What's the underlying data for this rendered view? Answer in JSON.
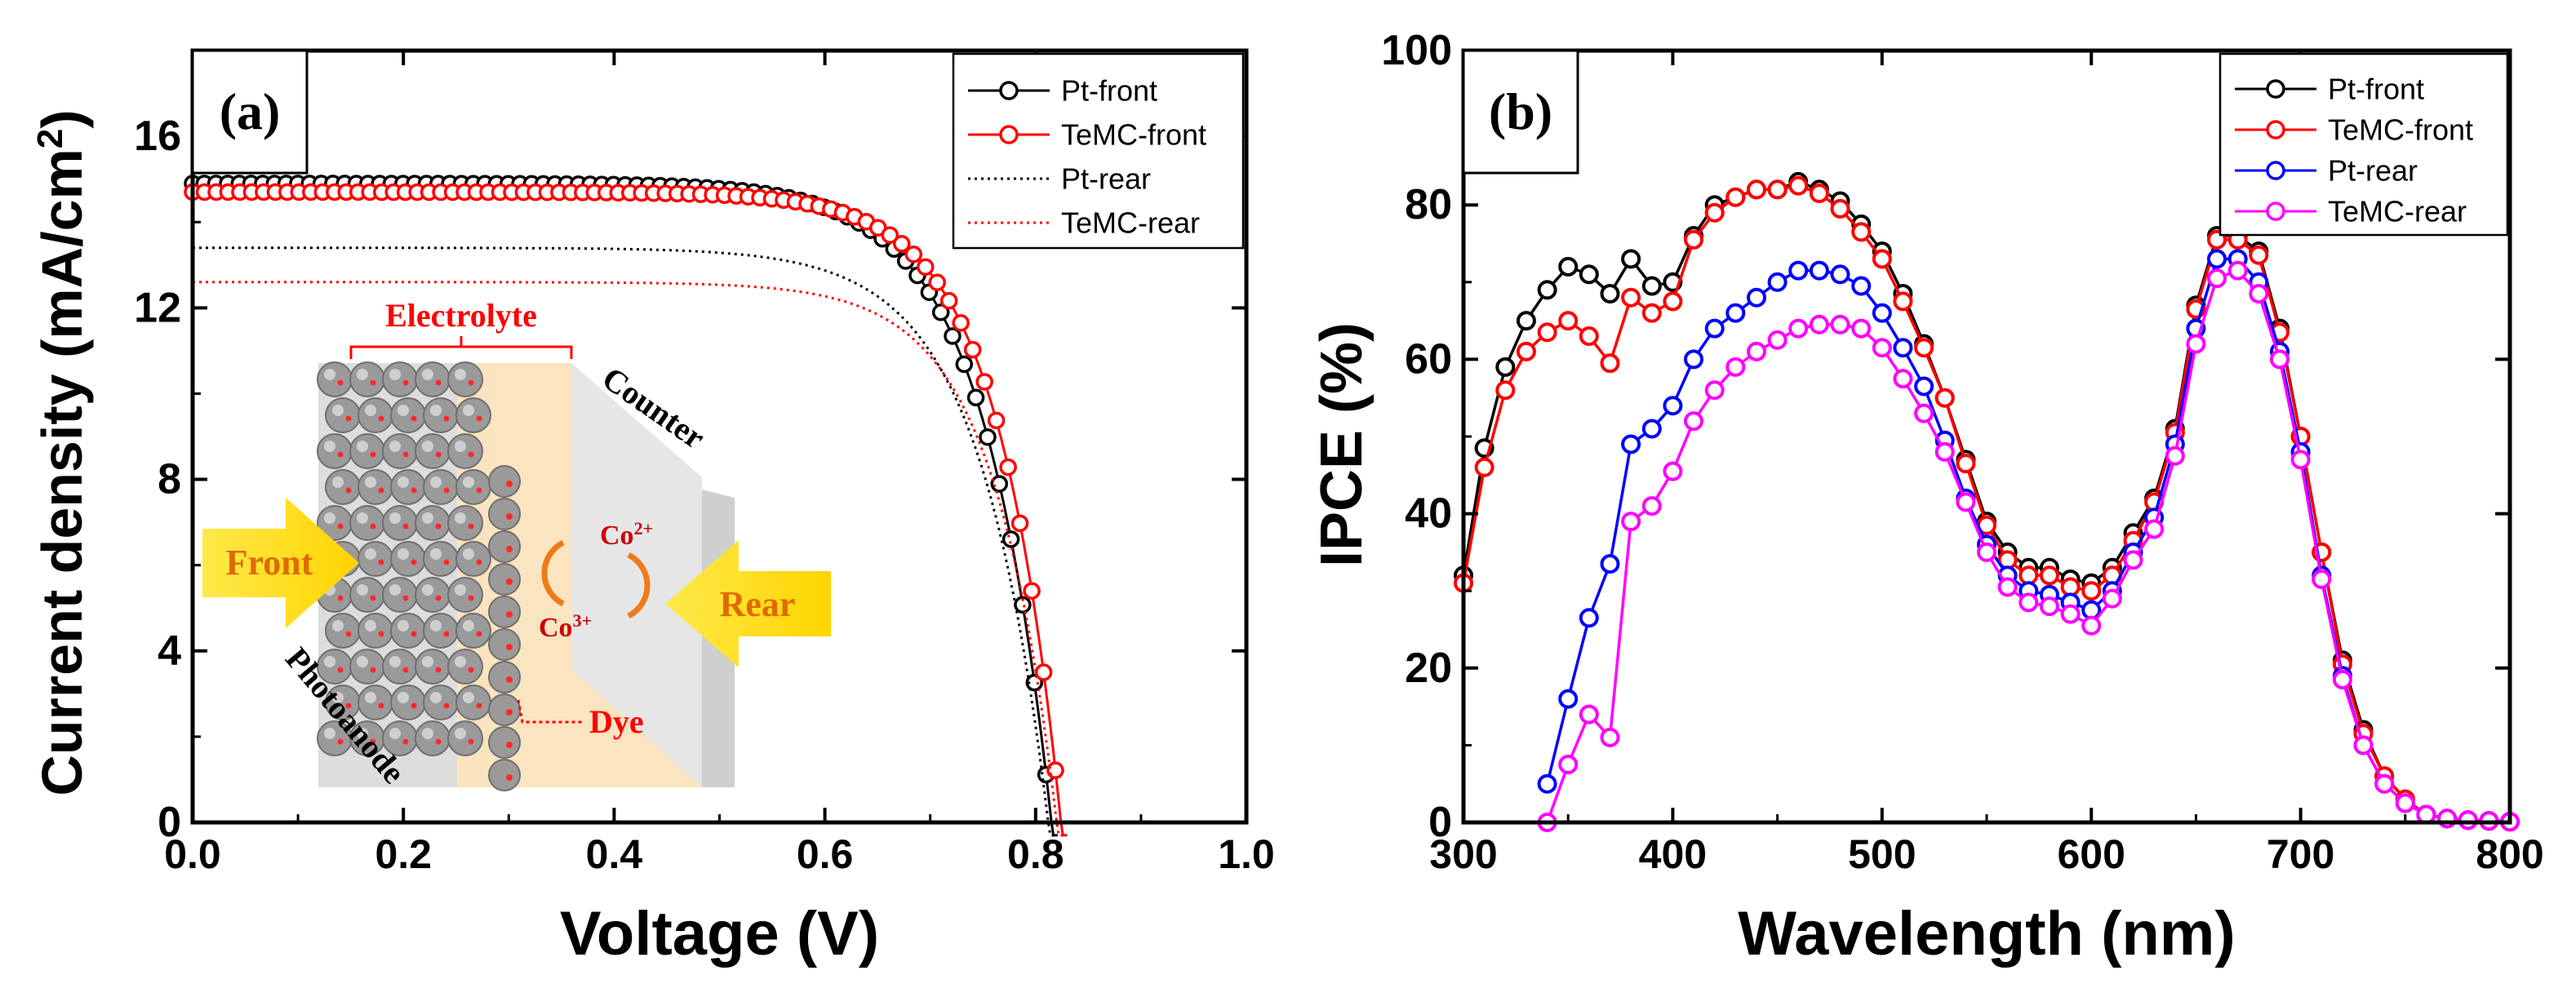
{
  "chart_data": [
    {
      "panel": "(a)",
      "type": "line",
      "xlabel": "Voltage (V)",
      "ylabel_main": "Current density (mA/cm",
      "ylabel_sup": "2",
      "ylabel_tail": ")",
      "xlim": [
        0.0,
        1.0
      ],
      "ylim": [
        0,
        18
      ],
      "xticks": [
        0.0,
        0.2,
        0.4,
        0.6,
        0.8,
        1.0
      ],
      "xtick_labels": [
        "0.0",
        "0.2",
        "0.4",
        "0.6",
        "0.8",
        "1.0"
      ],
      "yticks": [
        0,
        4,
        8,
        12,
        16
      ],
      "ytick_labels": [
        "0",
        "4",
        "8",
        "12",
        "16"
      ],
      "legend_position": "top-right",
      "series": [
        {
          "name": "Pt-front",
          "color": "#000000",
          "style": "line-circle",
          "jsc": 14.9,
          "voc": 0.815,
          "n": 2.55
        },
        {
          "name": "TeMC-front",
          "color": "#ff0000",
          "style": "line-circle",
          "jsc": 14.7,
          "voc": 0.824,
          "n": 2.35
        },
        {
          "name": "Pt-rear",
          "color": "#000000",
          "style": "dotted",
          "jsc": 13.4,
          "voc": 0.812,
          "n": 2.55
        },
        {
          "name": "TeMC-rear",
          "color": "#ff0000",
          "style": "dotted",
          "jsc": 12.6,
          "voc": 0.82,
          "n": 2.35
        }
      ],
      "inset": {
        "electrolyte_label": "Electrolyte",
        "counter_label": "Counter",
        "photoanode_label": "Photoanode",
        "dye_label": "Dye",
        "front_label": "Front",
        "rear_label": "Rear",
        "co2_base": "Co",
        "co2_sup": "2+",
        "co3_base": "Co",
        "co3_sup": "3+"
      }
    },
    {
      "panel": "(b)",
      "type": "line",
      "xlabel": "Wavelength (nm)",
      "ylabel": "IPCE (%)",
      "xlim": [
        300,
        800
      ],
      "ylim": [
        0,
        100
      ],
      "xticks": [
        300,
        400,
        500,
        600,
        700,
        800
      ],
      "xtick_labels": [
        "300",
        "400",
        "500",
        "600",
        "700",
        "800"
      ],
      "yticks": [
        0,
        20,
        40,
        60,
        80,
        100
      ],
      "ytick_labels": [
        "0",
        "20",
        "40",
        "60",
        "80",
        "100"
      ],
      "legend_position": "top-right",
      "series": [
        {
          "name": "Pt-front",
          "color": "#000000",
          "x": [
            300,
            310,
            320,
            330,
            340,
            350,
            360,
            370,
            380,
            390,
            400,
            410,
            420,
            430,
            440,
            450,
            460,
            470,
            480,
            490,
            500,
            510,
            520,
            530,
            540,
            550,
            560,
            570,
            580,
            590,
            600,
            610,
            620,
            630,
            640,
            650,
            660,
            670,
            680,
            690,
            700,
            710,
            720,
            730,
            740,
            750,
            760,
            770,
            780,
            790,
            800
          ],
          "y": [
            32,
            48.5,
            59,
            65,
            69,
            72,
            71,
            68.5,
            73,
            69.5,
            70,
            76,
            80,
            81,
            82,
            82,
            83,
            82,
            80.5,
            77.5,
            74,
            68.5,
            62,
            55,
            47,
            39,
            35,
            33,
            33,
            31.5,
            31,
            33,
            37.5,
            42,
            51,
            67,
            76,
            76,
            74,
            64,
            50,
            35,
            21,
            12,
            6,
            3,
            1,
            0.5,
            0.3,
            0.2,
            0.1
          ]
        },
        {
          "name": "TeMC-front",
          "color": "#ff0000",
          "x": [
            300,
            310,
            320,
            330,
            340,
            350,
            360,
            370,
            380,
            390,
            400,
            410,
            420,
            430,
            440,
            450,
            460,
            470,
            480,
            490,
            500,
            510,
            520,
            530,
            540,
            550,
            560,
            570,
            580,
            590,
            600,
            610,
            620,
            630,
            640,
            650,
            660,
            670,
            680,
            690,
            700,
            710,
            720,
            730,
            740,
            750,
            760,
            770,
            780,
            790,
            800
          ],
          "y": [
            31,
            46,
            56,
            61,
            63.5,
            65,
            63,
            59.5,
            68,
            66,
            67.5,
            75.5,
            79,
            81,
            82,
            82,
            82.5,
            81.5,
            79.5,
            76.5,
            73,
            67.5,
            61.5,
            55,
            46.5,
            38.5,
            34,
            32,
            32,
            30.5,
            30,
            32,
            36.5,
            41.5,
            50.5,
            66.5,
            75.5,
            75.5,
            73.5,
            63.5,
            50,
            35,
            20.5,
            11.5,
            6,
            3,
            1,
            0.5,
            0.3,
            0.2,
            0.1
          ]
        },
        {
          "name": "Pt-rear",
          "color": "#0000ff",
          "x": [
            340,
            350,
            360,
            370,
            380,
            390,
            400,
            410,
            420,
            430,
            440,
            450,
            460,
            470,
            480,
            490,
            500,
            510,
            520,
            530,
            540,
            550,
            560,
            570,
            580,
            590,
            600,
            610,
            620,
            630,
            640,
            650,
            660,
            670,
            680,
            690,
            700,
            710,
            720,
            730,
            740,
            750,
            760,
            770,
            780,
            790,
            800
          ],
          "y": [
            5,
            16,
            26.5,
            33.5,
            49,
            51,
            54,
            60,
            64,
            66,
            68,
            70,
            71.5,
            71.5,
            71,
            69.5,
            66,
            61.5,
            56.5,
            49.5,
            42,
            36,
            32,
            30,
            29.5,
            28.5,
            27.5,
            30,
            35,
            39.5,
            49,
            64,
            73,
            73,
            70,
            61,
            48,
            32,
            19,
            10,
            5,
            2.5,
            1,
            0.5,
            0.3,
            0.2,
            0.1
          ]
        },
        {
          "name": "TeMC-rear",
          "color": "#ff00ff",
          "x": [
            340,
            350,
            360,
            370,
            380,
            390,
            400,
            410,
            420,
            430,
            440,
            450,
            460,
            470,
            480,
            490,
            500,
            510,
            520,
            530,
            540,
            550,
            560,
            570,
            580,
            590,
            600,
            610,
            620,
            630,
            640,
            650,
            660,
            670,
            680,
            690,
            700,
            710,
            720,
            730,
            740,
            750,
            760,
            770,
            780,
            790,
            800
          ],
          "y": [
            0,
            7.5,
            14,
            11,
            39,
            41,
            45.5,
            52,
            56,
            59,
            61,
            62.5,
            64,
            64.5,
            64.5,
            64,
            61.5,
            57.5,
            53,
            48,
            41.5,
            35,
            30.5,
            28.5,
            28,
            27,
            25.5,
            29,
            34,
            38,
            47.5,
            62,
            70.5,
            71.5,
            68.5,
            60,
            47,
            31.5,
            18.5,
            10,
            5,
            2.5,
            1,
            0.5,
            0.3,
            0.2,
            0.1
          ]
        }
      ]
    }
  ]
}
